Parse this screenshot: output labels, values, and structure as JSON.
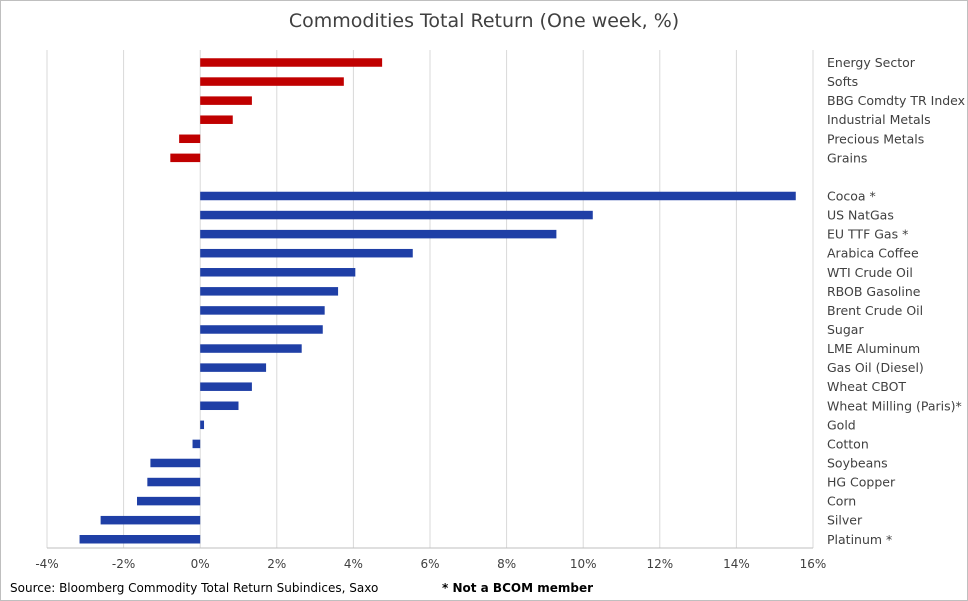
{
  "chart_data": {
    "type": "bar",
    "orientation": "horizontal",
    "title": "Commodities Total Return (One week, %)",
    "xlim": [
      -4,
      16
    ],
    "xticks": [
      "-4%",
      "-2%",
      "0%",
      "2%",
      "4%",
      "6%",
      "8%",
      "10%",
      "12%",
      "14%",
      "16%"
    ],
    "tick_values": [
      -4,
      -2,
      0,
      2,
      4,
      6,
      8,
      10,
      12,
      14,
      16
    ],
    "grid": true,
    "groups": [
      {
        "color": "#c00000",
        "categories": [
          "Energy Sector",
          "Softs",
          "BBG Comdty TR Index",
          "Industrial Metals",
          "Precious Metals",
          "Grains"
        ],
        "values": [
          4.75,
          3.75,
          1.35,
          0.85,
          -0.55,
          -0.78
        ]
      },
      {
        "color": "#1f3fa6",
        "categories": [
          "Cocoa *",
          "US NatGas",
          "EU TTF Gas *",
          "Arabica Coffee",
          "WTI Crude Oil",
          "RBOB Gasoline",
          "Brent Crude Oil",
          "Sugar",
          "LME Aluminum",
          "Gas Oil (Diesel)",
          "Wheat CBOT",
          "Wheat Milling (Paris)*",
          "Gold",
          "Cotton",
          "Soybeans",
          "HG Copper",
          "Corn",
          "Silver",
          "Platinum *"
        ],
        "values": [
          15.55,
          10.25,
          9.3,
          5.55,
          4.05,
          3.6,
          3.25,
          3.2,
          2.65,
          1.72,
          1.35,
          1.0,
          0.1,
          -0.2,
          -1.3,
          -1.38,
          -1.65,
          -2.6,
          -3.15
        ]
      }
    ]
  },
  "source_note": "Source: Bloomberg Commodity Total Return Subindices, Saxo",
  "footnote": "* Not a BCOM member"
}
